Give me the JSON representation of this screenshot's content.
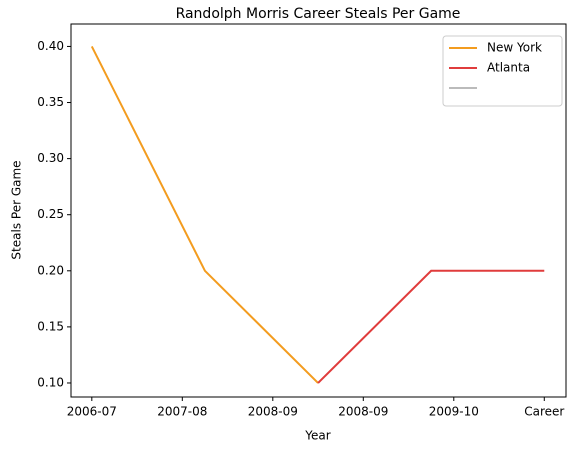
{
  "chart_data": {
    "type": "line",
    "title": "Randolph Morris Career Steals Per Game",
    "xlabel": "Year",
    "ylabel": "Steals Per Game",
    "xlim": [
      -0.23,
      5.24
    ],
    "xticks": [
      {
        "value": 0,
        "label": "2006-07"
      },
      {
        "value": 1,
        "label": "2007-08"
      },
      {
        "value": 2,
        "label": "2008-09"
      },
      {
        "value": 3,
        "label": "2008-09"
      },
      {
        "value": 4,
        "label": "2009-10"
      },
      {
        "value": 5,
        "label": "Career"
      }
    ],
    "ylim": [
      0.0875,
      0.42
    ],
    "yticks": [
      {
        "value": 0.1,
        "label": "0.10"
      },
      {
        "value": 0.15,
        "label": "0.15"
      },
      {
        "value": 0.2,
        "label": "0.20"
      },
      {
        "value": 0.25,
        "label": "0.25"
      },
      {
        "value": 0.3,
        "label": "0.30"
      },
      {
        "value": 0.35,
        "label": "0.35"
      },
      {
        "value": 0.4,
        "label": "0.40"
      }
    ],
    "legend": "upper right",
    "series": [
      {
        "name": "New York",
        "color": "#f39c1f",
        "x": [
          0,
          1.25,
          2.5
        ],
        "values": [
          0.4,
          0.2,
          0.1
        ]
      },
      {
        "name": "Atlanta",
        "color": "#e03c3c",
        "x": [
          2.5,
          3.75,
          5
        ],
        "values": [
          0.1,
          0.2,
          0.2
        ]
      },
      {
        "color": "#bbbbbb",
        "x": [],
        "values": []
      }
    ]
  }
}
